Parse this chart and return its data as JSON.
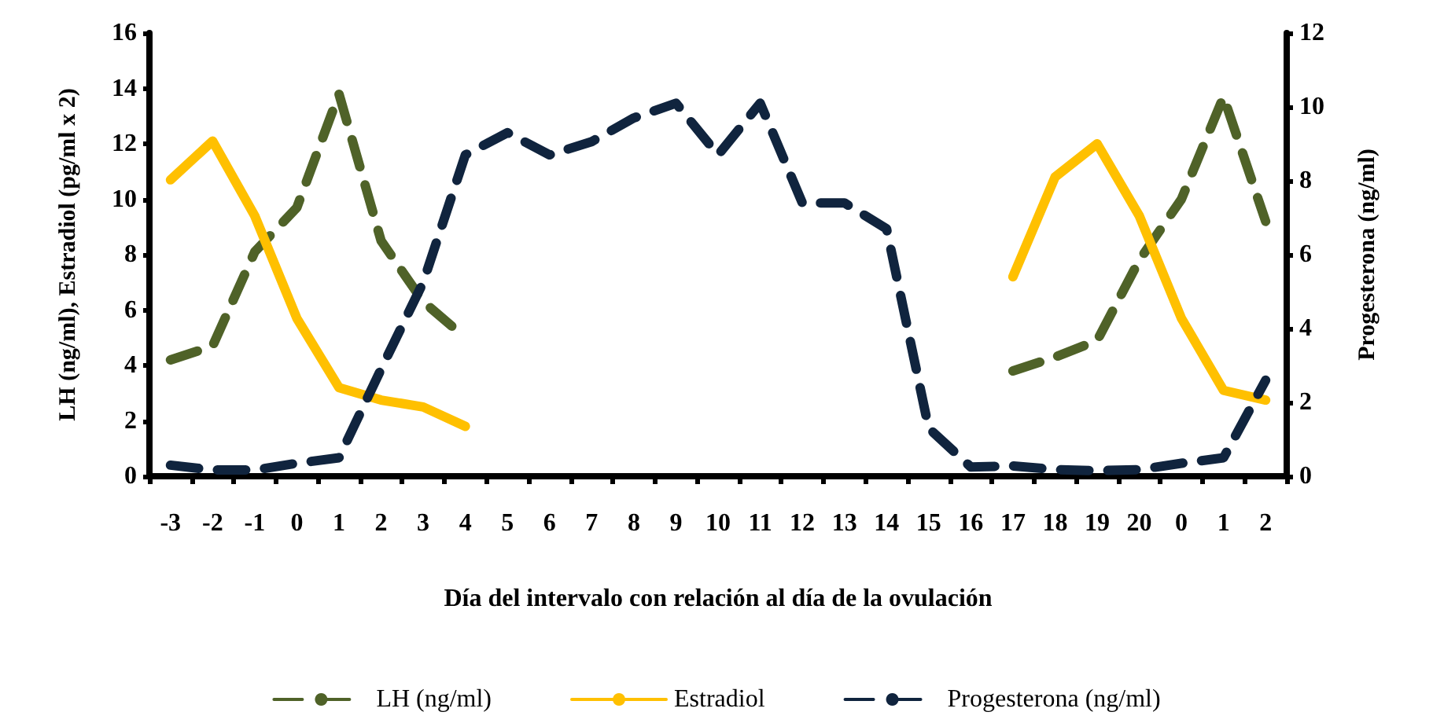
{
  "chart_data": {
    "type": "line",
    "xlabel": "Día del intervalo con relación al día de la ovulación",
    "ylabel": "LH (ng/ml), Estradiol (pg/ml x 2)",
    "y2label": "Progesterona (ng/ml)",
    "categories": [
      "-3",
      "-2",
      "-1",
      "0",
      "1",
      "2",
      "3",
      "4",
      "5",
      "6",
      "7",
      "8",
      "9",
      "10",
      "11",
      "12",
      "13",
      "14",
      "15",
      "16",
      "17",
      "18",
      "19",
      "20",
      "0",
      "1",
      "2"
    ],
    "series": [
      {
        "name": "LH (ng/ml)",
        "color": "#4f6228",
        "line_style": "dashed",
        "values": [
          4.2,
          4.7,
          8.1,
          9.7,
          13.8,
          8.5,
          6.3,
          5.0,
          null,
          null,
          null,
          null,
          null,
          null,
          null,
          null,
          null,
          null,
          null,
          null,
          3.8,
          4.3,
          4.9,
          7.8,
          10.0,
          13.7,
          9.2
        ]
      },
      {
        "name": "Estradiol",
        "color": "#ffc000",
        "line_style": "solid",
        "values": [
          10.7,
          12.1,
          9.4,
          5.7,
          3.2,
          2.75,
          2.5,
          1.8,
          null,
          null,
          null,
          null,
          null,
          null,
          null,
          null,
          null,
          null,
          null,
          null,
          7.2,
          10.8,
          12.0,
          9.4,
          5.7,
          3.1,
          2.75
        ]
      },
      {
        "name": "Progesterona (ng/ml)",
        "color": "#10243e",
        "line_style": "dashed",
        "axis": "y2",
        "values": [
          0.3,
          0.17,
          0.17,
          0.35,
          0.5,
          2.9,
          5.25,
          8.7,
          9.3,
          8.7,
          9.06,
          9.7,
          10.1,
          8.7,
          10.1,
          7.4,
          7.4,
          6.7,
          1.3,
          0.25,
          0.28,
          0.18,
          0.15,
          0.18,
          0.35,
          0.5,
          2.6
        ]
      }
    ],
    "ylim": [
      0,
      16
    ],
    "yticks": [
      0,
      2,
      4,
      6,
      8,
      10,
      12,
      14,
      16
    ],
    "y2lim": [
      0,
      12
    ],
    "y2ticks": [
      0,
      2,
      4,
      6,
      8,
      10,
      12
    ],
    "grid": false,
    "legend": "bottom",
    "marker": "none"
  }
}
